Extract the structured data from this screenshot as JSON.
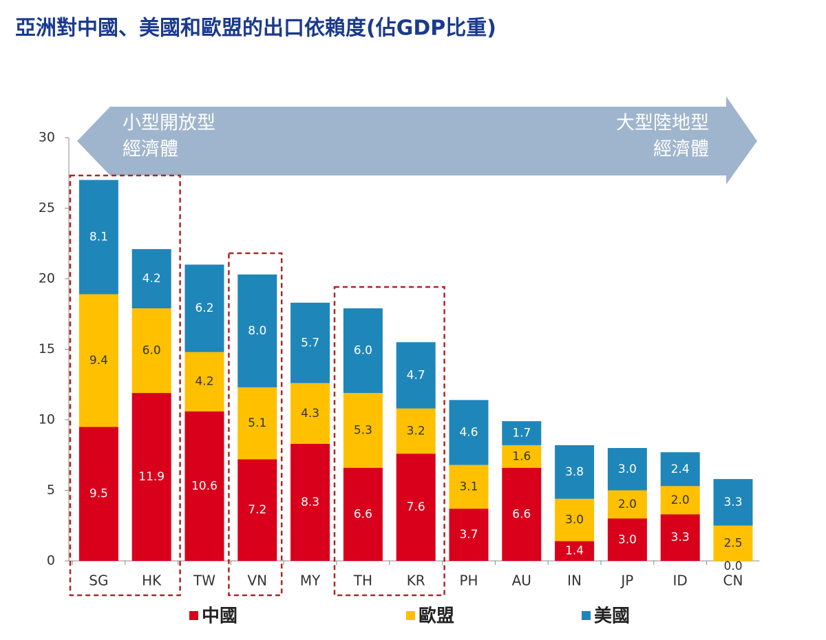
{
  "chart_data": {
    "type": "stacked_bar",
    "title": "亞洲對中國、美國和歐盟的出口依賴度(佔GDP比重)",
    "annotations": [
      {
        "lines": [
          "小型開放型",
          "經濟體"
        ]
      },
      {
        "lines": [
          "大型陸地型",
          "經濟體"
        ]
      }
    ],
    "categories": [
      "SG",
      "HK",
      "TW",
      "VN",
      "MY",
      "TH",
      "KR",
      "PH",
      "AU",
      "IN",
      "JP",
      "ID",
      "CN"
    ],
    "series": [
      {
        "name": "中國",
        "color": "#d9001b",
        "values": [
          9.5,
          11.9,
          10.6,
          7.2,
          8.3,
          6.6,
          7.6,
          3.7,
          6.6,
          1.4,
          3.0,
          3.3,
          0.0
        ],
        "value_labels": [
          "9.5",
          "11.9",
          "10.6",
          "7.2",
          "8.3",
          "6.6",
          "7.6",
          "3.7",
          "6.6",
          "1.4",
          "3.0",
          "3.3",
          "0.0"
        ]
      },
      {
        "name": "歐盟",
        "color": "#ffc000",
        "values": [
          9.4,
          6.0,
          4.2,
          5.1,
          4.3,
          5.3,
          3.2,
          3.1,
          1.6,
          3.0,
          2.0,
          2.0,
          2.5
        ],
        "value_labels": [
          "9.4",
          "6.0",
          "4.2",
          "5.1",
          "4.3",
          "5.3",
          "3.2",
          "3.1",
          "1.6",
          "3.0",
          "2.0",
          "2.0",
          "2.5"
        ]
      },
      {
        "name": "美國",
        "color": "#1f86b9",
        "values": [
          8.1,
          4.2,
          6.2,
          8.0,
          5.7,
          6.0,
          4.7,
          4.6,
          1.7,
          3.8,
          3.0,
          2.4,
          3.3
        ],
        "value_labels": [
          "8.1",
          "4.2",
          "6.2",
          "8.0",
          "5.7",
          "6.0",
          "4.7",
          "4.6",
          "1.7",
          "3.8",
          "3.0",
          "2.4",
          "3.3"
        ]
      }
    ],
    "ylim": [
      0,
      30
    ],
    "yticks": [
      0,
      5,
      10,
      15,
      20,
      25,
      30
    ]
  }
}
